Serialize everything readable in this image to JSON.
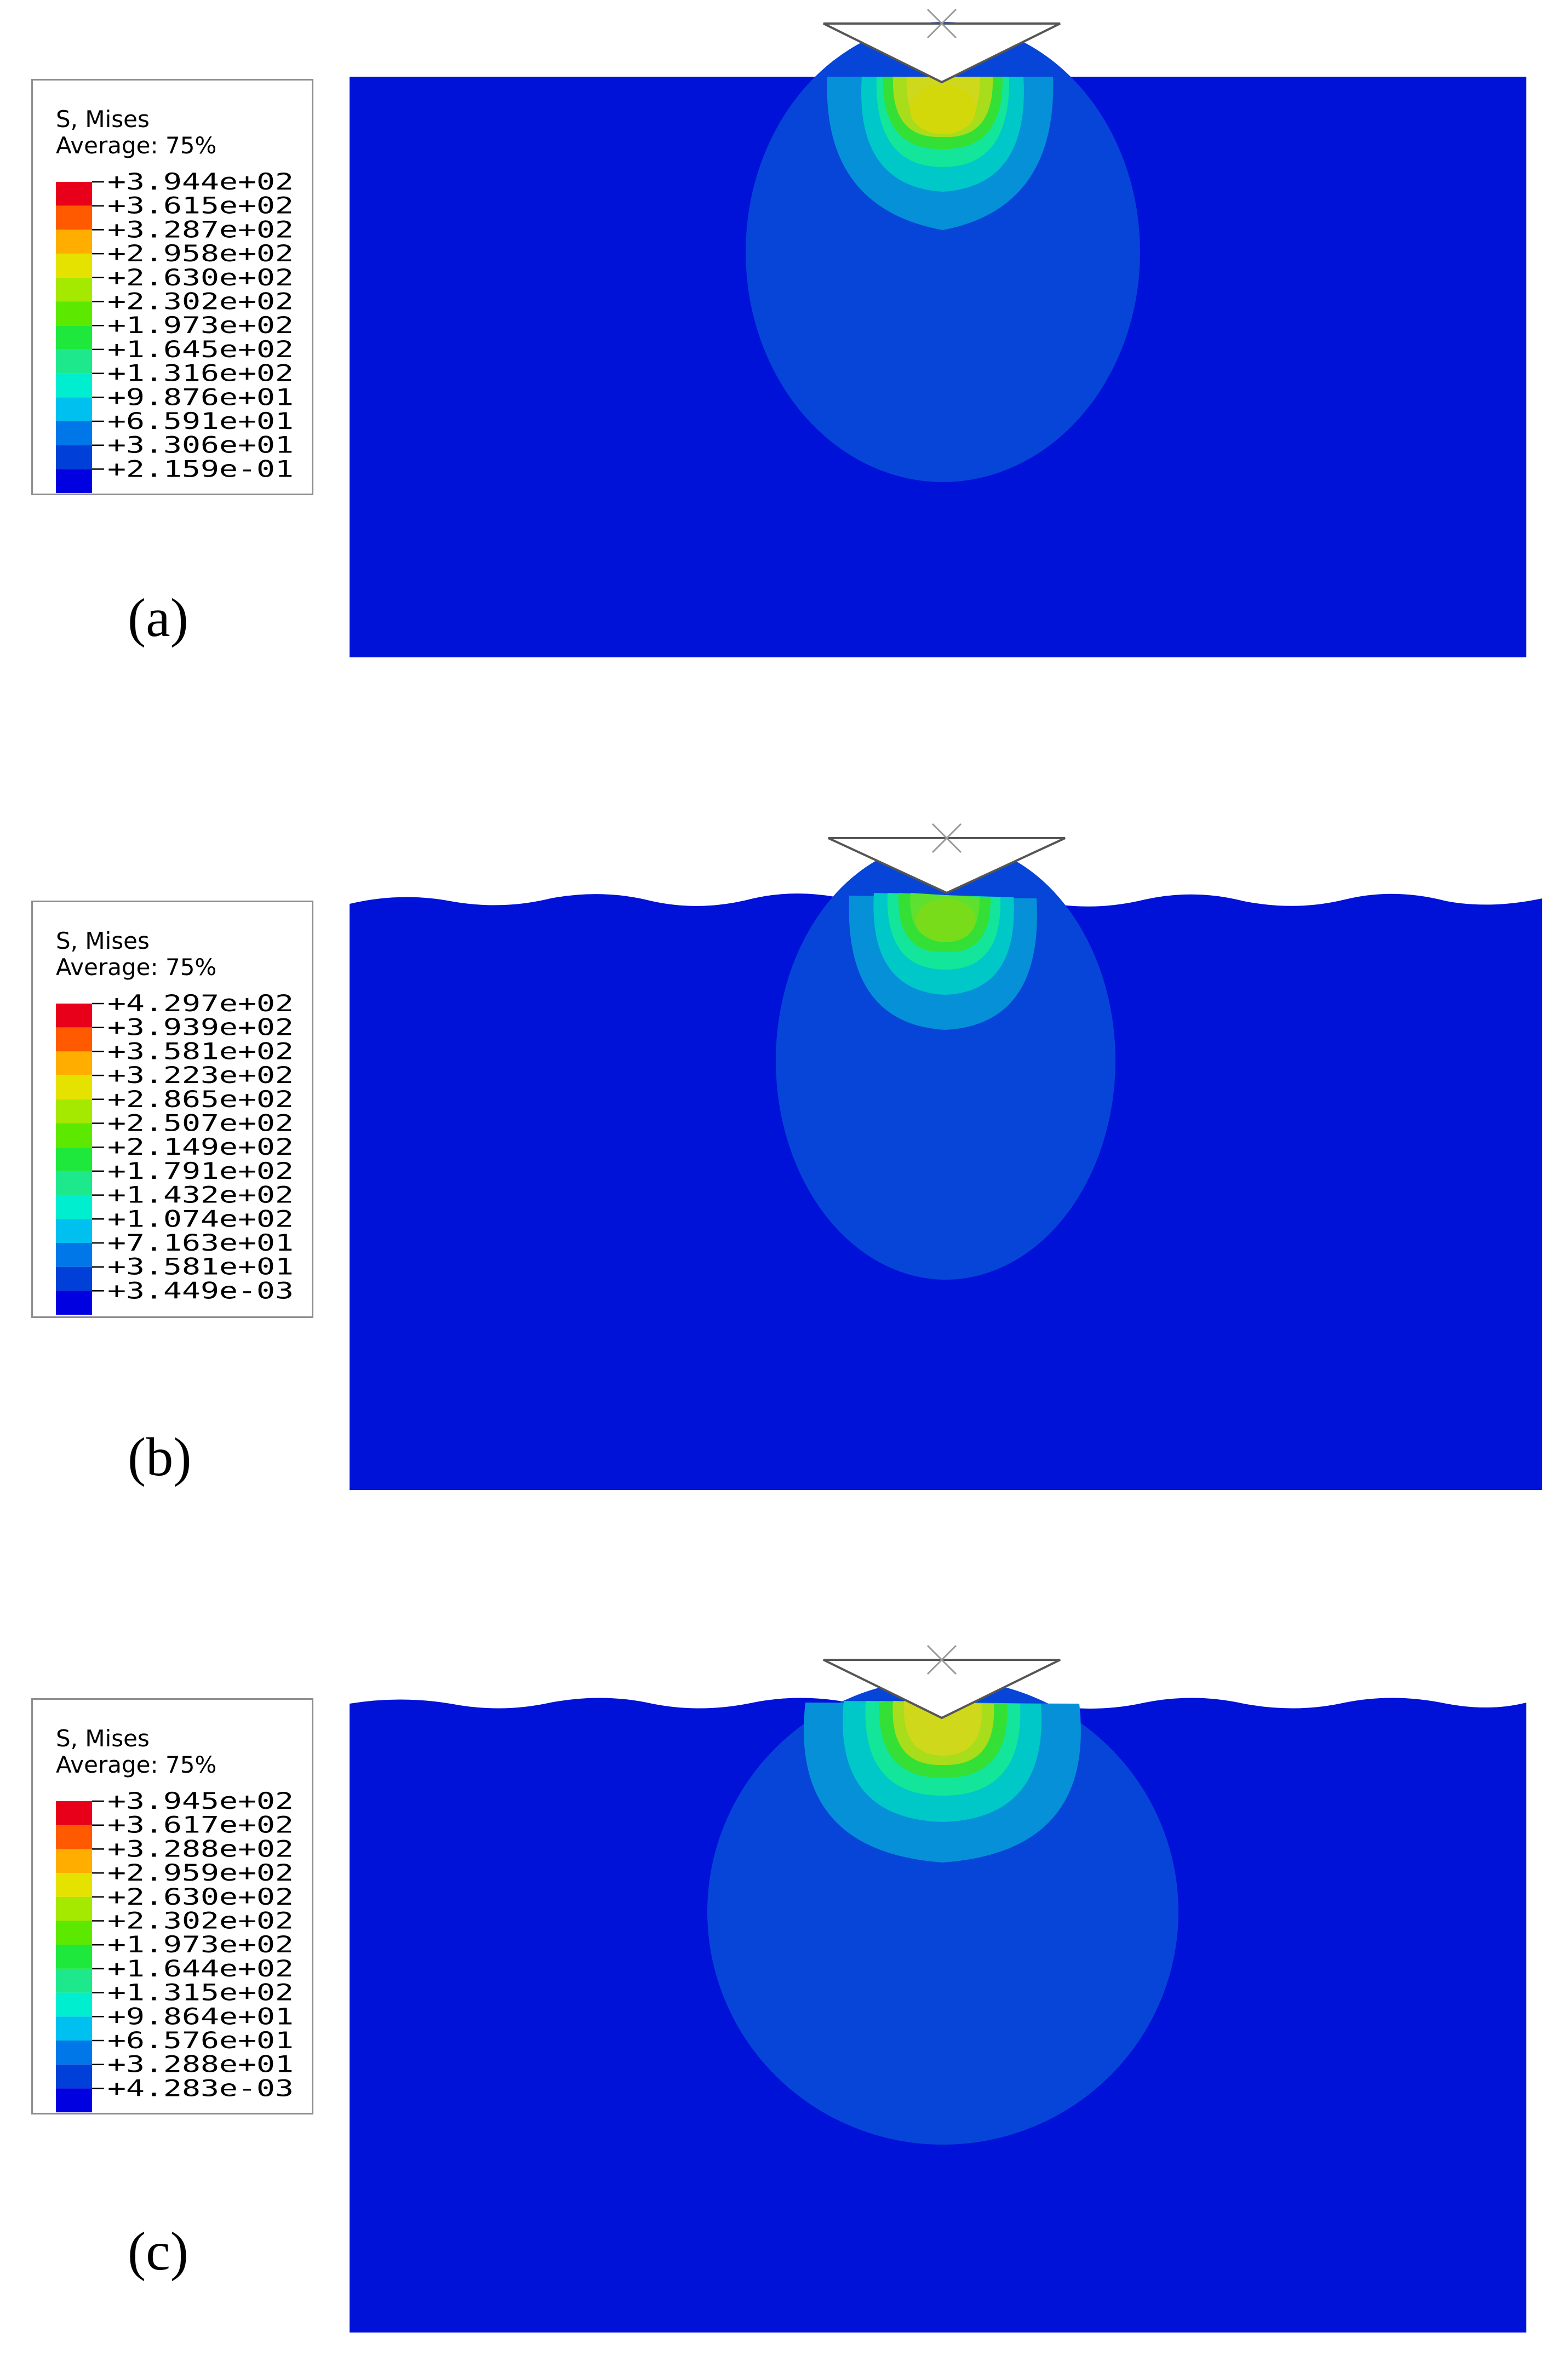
{
  "panels": [
    {
      "label": "(a)",
      "legend": {
        "title": "S, Mises",
        "subtitle": "Average: 75%",
        "ticks": [
          "+3.944e+02",
          "+3.615e+02",
          "+3.287e+02",
          "+2.958e+02",
          "+2.630e+02",
          "+2.302e+02",
          "+1.973e+02",
          "+1.645e+02",
          "+1.316e+02",
          "+9.876e+01",
          "+6.591e+01",
          "+3.306e+01",
          "+2.159e-01"
        ]
      },
      "surface": "flat"
    },
    {
      "label": "(b)",
      "legend": {
        "title": "S, Mises",
        "subtitle": "Average: 75%",
        "ticks": [
          "+4.297e+02",
          "+3.939e+02",
          "+3.581e+02",
          "+3.223e+02",
          "+2.865e+02",
          "+2.507e+02",
          "+2.149e+02",
          "+1.791e+02",
          "+1.432e+02",
          "+1.074e+02",
          "+7.163e+01",
          "+3.581e+01",
          "+3.449e-03"
        ]
      },
      "surface": "wavy"
    },
    {
      "label": "(c)",
      "legend": {
        "title": "S, Mises",
        "subtitle": "Average: 75%",
        "ticks": [
          "+3.945e+02",
          "+3.617e+02",
          "+3.288e+02",
          "+2.959e+02",
          "+2.630e+02",
          "+2.302e+02",
          "+1.973e+02",
          "+1.644e+02",
          "+1.315e+02",
          "+9.864e+01",
          "+6.576e+01",
          "+3.288e+01",
          "+4.283e-03"
        ]
      },
      "surface": "wavy"
    }
  ],
  "colormap": [
    "#e8001a",
    "#ff5a00",
    "#ffae00",
    "#e6e200",
    "#a5e800",
    "#5de800",
    "#1ee83c",
    "#1ee88c",
    "#00eed0",
    "#00c0f0",
    "#0077e8",
    "#0040d8",
    "#0000e0"
  ],
  "contour_colors": {
    "base": "#0011d8",
    "c1": "#0645d8",
    "c2": "#0590d8",
    "c3": "#00c8c8",
    "c4": "#13e59a",
    "c5": "#34e035",
    "c6": "#a7dd1a",
    "c7": "#cfd81a"
  }
}
